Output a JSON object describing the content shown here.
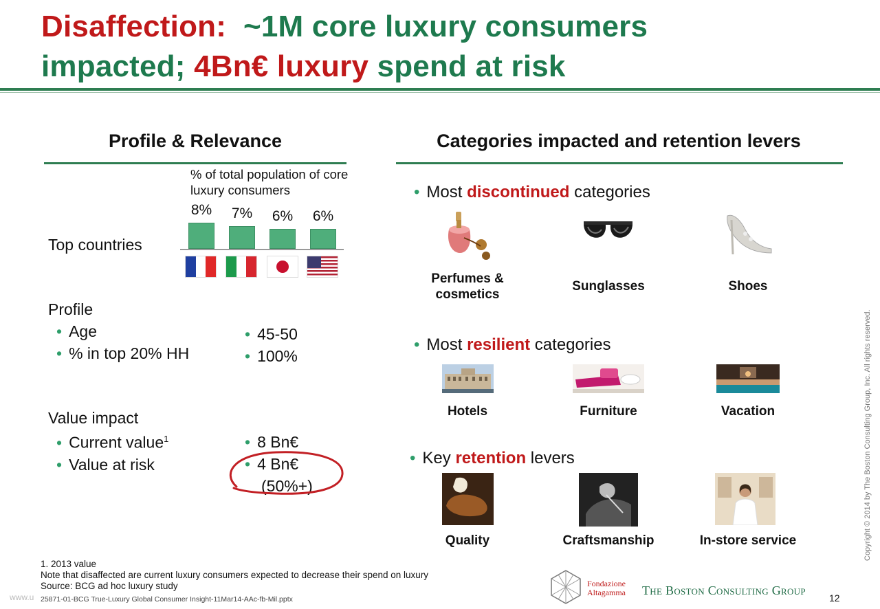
{
  "title": {
    "part1": "Disaffection:",
    "part2": "~1M core luxury consumers",
    "part3": "impacted;",
    "part4": "4Bn€ luxury",
    "part5": "spend at risk"
  },
  "left": {
    "heading": "Profile & Relevance",
    "chart_caption": "% of total population of core luxury consumers",
    "top_countries_label": "Top countries",
    "profile_label": "Profile",
    "profile_items": [
      "Age",
      "% in top 20% HH"
    ],
    "profile_values": [
      "45-50",
      "100%"
    ],
    "value_label": "Value impact",
    "value_items": [
      "Current  value",
      "Value at risk"
    ],
    "value_item_sup": "1",
    "value_values": [
      "8 Bn€",
      "4 Bn€",
      "(50%+)"
    ]
  },
  "chart_data": {
    "type": "bar",
    "categories": [
      "France",
      "Italy",
      "Japan",
      "USA"
    ],
    "values": [
      8,
      7,
      6,
      6
    ],
    "labels": [
      "8%",
      "7%",
      "6%",
      "6%"
    ],
    "ylim": [
      0,
      8
    ]
  },
  "right": {
    "heading": "Categories impacted and retention levers",
    "discontinued": {
      "prefix": "Most ",
      "highlight": "discontinued",
      "suffix": " categories",
      "items": [
        "Perfumes & cosmetics",
        "Sunglasses",
        "Shoes"
      ]
    },
    "resilient": {
      "prefix": "Most ",
      "highlight": "resilient",
      "suffix": " categories",
      "items": [
        "Hotels",
        "Furniture",
        "Vacation"
      ]
    },
    "retention": {
      "prefix": "Key ",
      "highlight": "retention",
      "suffix": " levers",
      "items": [
        "Quality",
        "Craftsmanship",
        "In-store service"
      ]
    }
  },
  "footer": {
    "note1": "1. 2013 value",
    "note2": "Note that disaffected are current luxury consumers expected to decrease their spend on luxury",
    "note3": "Source: BCG ad hoc luxury study",
    "file": "25871-01-BCG True-Luxury Global Consumer Insight-11Mar14-AAc-fb-Mil.pptx",
    "watermark": "www.u",
    "logo1_line1": "Fondazione",
    "logo1_line2": "Altagamma",
    "logo2": "The Boston Consulting Group",
    "page": "12",
    "copyright": "Copyright © 2014 by The Boston Consulting Group, Inc. All rights reserved."
  },
  "colors": {
    "green": "#1e7a4e",
    "red": "#c0191a",
    "bar": "#4fae7b"
  }
}
